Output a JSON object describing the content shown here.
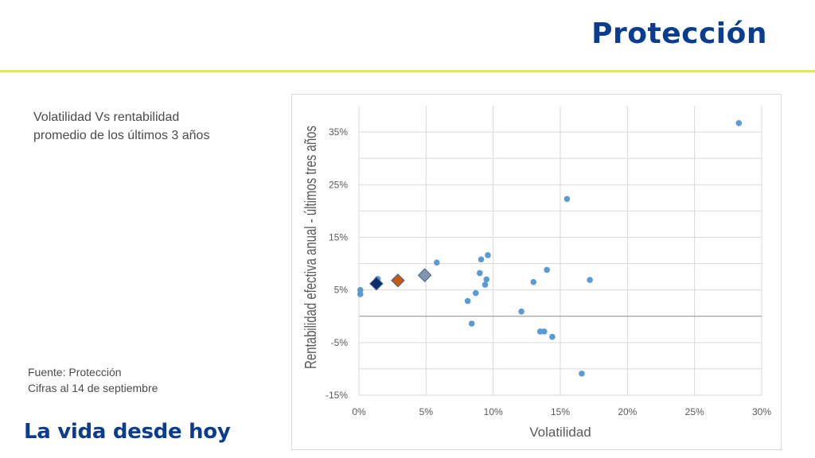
{
  "header": {
    "title": "Protección"
  },
  "subtitle": {
    "line1": "Volatilidad Vs rentabilidad",
    "line2": "promedio de los últimos 3 años"
  },
  "source": {
    "line1": "Fuente: Protección",
    "line2": "Cifras al 14 de septiembre"
  },
  "footer": {
    "tagline": "La vida desde hoy"
  },
  "colors": {
    "brand": "#0a3d8f",
    "accent_rule": "#e9e84a",
    "points": "#5b9bd5",
    "highlight_navy": "#0b2d6b",
    "highlight_orange": "#c55a11",
    "highlight_gray": "#8497b0"
  },
  "chart_data": {
    "type": "scatter",
    "title": "",
    "xlabel": "Volatilidad",
    "ylabel": "Rentabilidad efectiva anual - últimos tres años",
    "xlim": [
      0,
      0.3
    ],
    "ylim": [
      -0.15,
      0.4
    ],
    "xticks": [
      "0%",
      "5%",
      "10%",
      "15%",
      "20%",
      "25%",
      "30%"
    ],
    "yticks": [
      "-15%",
      "-5%",
      "5%",
      "15%",
      "25%",
      "35%"
    ],
    "grid": true,
    "legend": "none",
    "series": [
      {
        "marker": "circle",
        "points": [
          [
            0.001,
            0.05
          ],
          [
            0.001,
            0.042
          ],
          [
            0.014,
            0.071
          ],
          [
            0.058,
            0.102
          ],
          [
            0.081,
            0.029
          ],
          [
            0.084,
            -0.014
          ],
          [
            0.087,
            0.044
          ],
          [
            0.09,
            0.082
          ],
          [
            0.091,
            0.108
          ],
          [
            0.094,
            0.06
          ],
          [
            0.095,
            0.07
          ],
          [
            0.096,
            0.116
          ],
          [
            0.121,
            0.009
          ],
          [
            0.13,
            0.065
          ],
          [
            0.135,
            -0.029
          ],
          [
            0.138,
            -0.029
          ],
          [
            0.14,
            0.088
          ],
          [
            0.144,
            -0.039
          ],
          [
            0.155,
            0.223
          ],
          [
            0.166,
            -0.109
          ],
          [
            0.172,
            0.069
          ],
          [
            0.283,
            0.367
          ]
        ]
      },
      {
        "marker": "diamond",
        "color": "#0b2d6b",
        "points": [
          [
            0.013,
            0.062
          ]
        ]
      },
      {
        "marker": "diamond",
        "color": "#c55a11",
        "points": [
          [
            0.029,
            0.068
          ]
        ]
      },
      {
        "marker": "diamond",
        "color": "#8497b0",
        "points": [
          [
            0.049,
            0.078
          ]
        ]
      }
    ]
  }
}
